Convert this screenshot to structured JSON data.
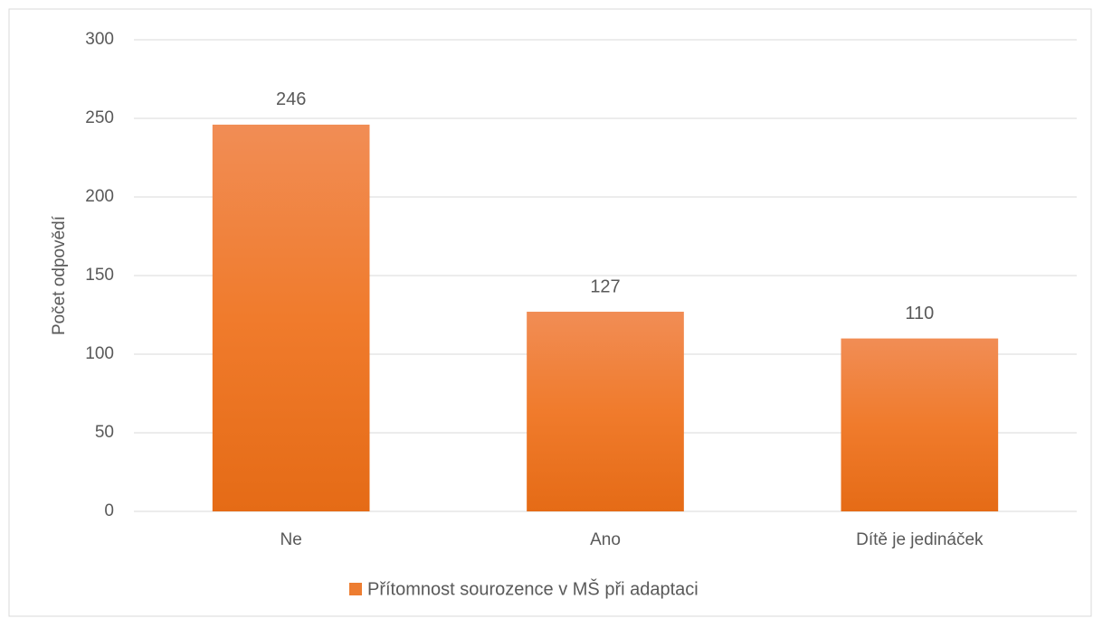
{
  "chart_data": {
    "type": "bar",
    "categories": [
      "Ne",
      "Ano",
      "Dítě je jedináček"
    ],
    "series": [
      {
        "name": "Přítomnost sourozence v MŠ při adaptaci",
        "color": "#ed7d31",
        "values": [
          246,
          127,
          110
        ]
      }
    ],
    "y_label": "Počet odpovědí",
    "ylim": [
      0,
      300
    ],
    "yticks": [
      0,
      50,
      100,
      150,
      200,
      250,
      300
    ],
    "grid": true,
    "legend": "bottom"
  }
}
